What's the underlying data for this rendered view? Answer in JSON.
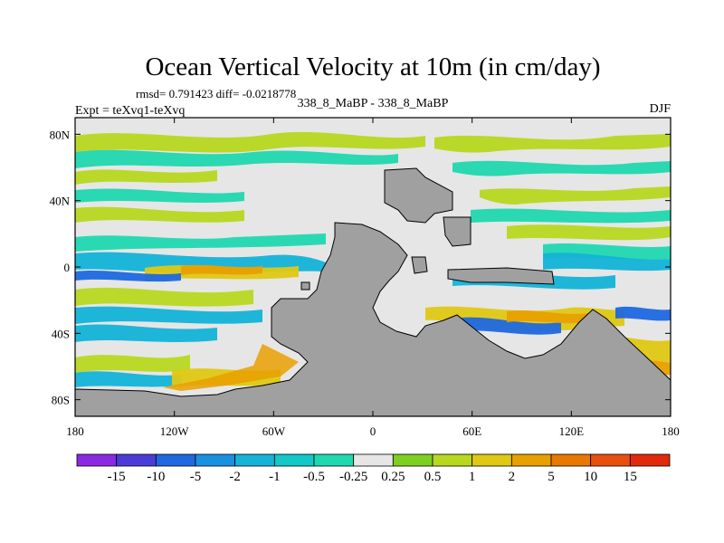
{
  "chart_data": {
    "type": "heatmap",
    "title": "Ocean Vertical Velocity at 10m (in cm/day)",
    "stats": "rmsd= 0.791423  diff= -0.0218778",
    "experiment": "Expt = teXvq1-teXvq",
    "comparison": "338_8_MaBP - 338_8_MaBP",
    "season": "DJF",
    "x_ticks": [
      "180",
      "120W",
      "60W",
      "0",
      "60E",
      "120E",
      "180"
    ],
    "x_values": [
      -180,
      -120,
      -60,
      0,
      60,
      120,
      180
    ],
    "y_ticks": [
      "80N",
      "40N",
      "0",
      "40S",
      "80S"
    ],
    "y_values": [
      80,
      40,
      0,
      -40,
      -80
    ],
    "xlim": [
      -180,
      180
    ],
    "ylim": [
      -90,
      90
    ],
    "colorbar": {
      "labels": [
        "-15",
        "-10",
        "-5",
        "-2",
        "-1",
        "-0.5",
        "-0.25",
        "0.25",
        "0.5",
        "1",
        "2",
        "5",
        "10",
        "15"
      ],
      "colors": [
        "#8a2be2",
        "#4b3cd8",
        "#1e68e0",
        "#1a90e0",
        "#14b4d8",
        "#12c8c8",
        "#20d8b0",
        "#e6e6e6",
        "#7ed020",
        "#b8d820",
        "#e0c814",
        "#e8a000",
        "#e87800",
        "#e85010",
        "#e02a0a"
      ]
    },
    "land_color": "#a0a0a0",
    "near_zero_color": "#e6e6e6"
  }
}
